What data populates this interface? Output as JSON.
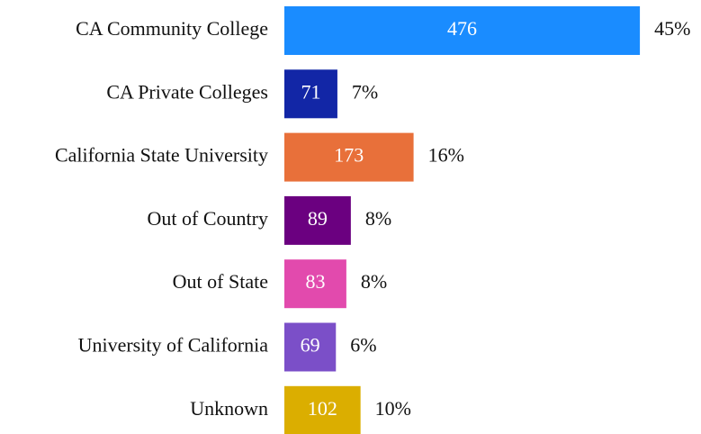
{
  "chart_data": {
    "type": "bar",
    "orientation": "horizontal",
    "categories": [
      "CA Community College",
      "CA Private Colleges",
      "California State University",
      "Out of Country",
      "Out of State",
      "University of California",
      "Unknown"
    ],
    "values": [
      476,
      71,
      173,
      89,
      83,
      69,
      102
    ],
    "share_labels": [
      "45%",
      "7%",
      "16%",
      "8%",
      "8%",
      "6%",
      "10%"
    ],
    "colors": [
      "#1a8cff",
      "#1226a6",
      "#e8703a",
      "#6b0080",
      "#e24aad",
      "#7b4fc8",
      "#dbae00"
    ]
  }
}
